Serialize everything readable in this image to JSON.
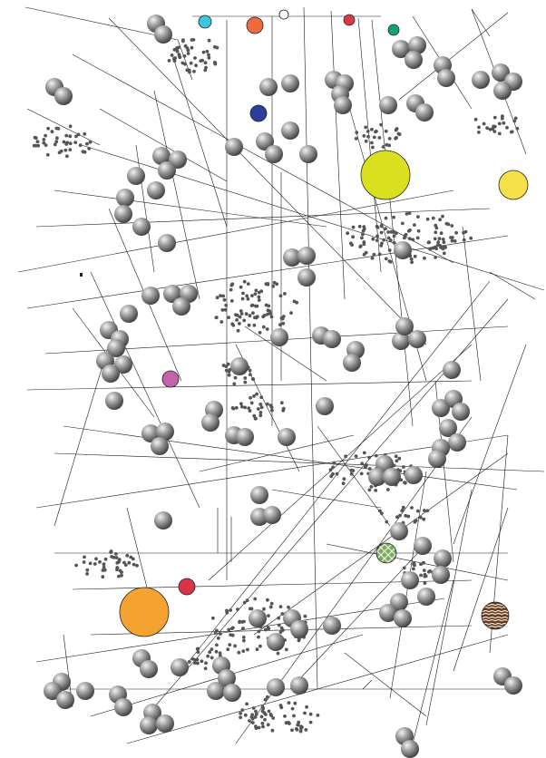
{
  "canvas": {
    "background": "#ffffff",
    "line_color": "#1a1a1a",
    "sphere_light": "#f2f2f2",
    "sphere_mid": "#9a9a9a",
    "sphere_dark": "#3a3a3a",
    "dot_color": "#555555"
  },
  "accent_colors": {
    "cyan": "#3ec6e0",
    "orange_red": "#f06a3c",
    "red": "#d63a4a",
    "green": "#16a06a",
    "navy": "#2a3e9c",
    "lime": "#dbe01e",
    "yellow": "#f5df4a",
    "magenta": "#c562ac",
    "crimson": "#d8344a",
    "orange": "#f5a330",
    "patterned_green": "#7aa860",
    "patterned_brown": "#6a3a20"
  },
  "icons": [
    "sphere-icon",
    "dot-cluster-icon",
    "solid-circle-icon",
    "patterned-circle-icon",
    "line-segment-icon"
  ]
}
